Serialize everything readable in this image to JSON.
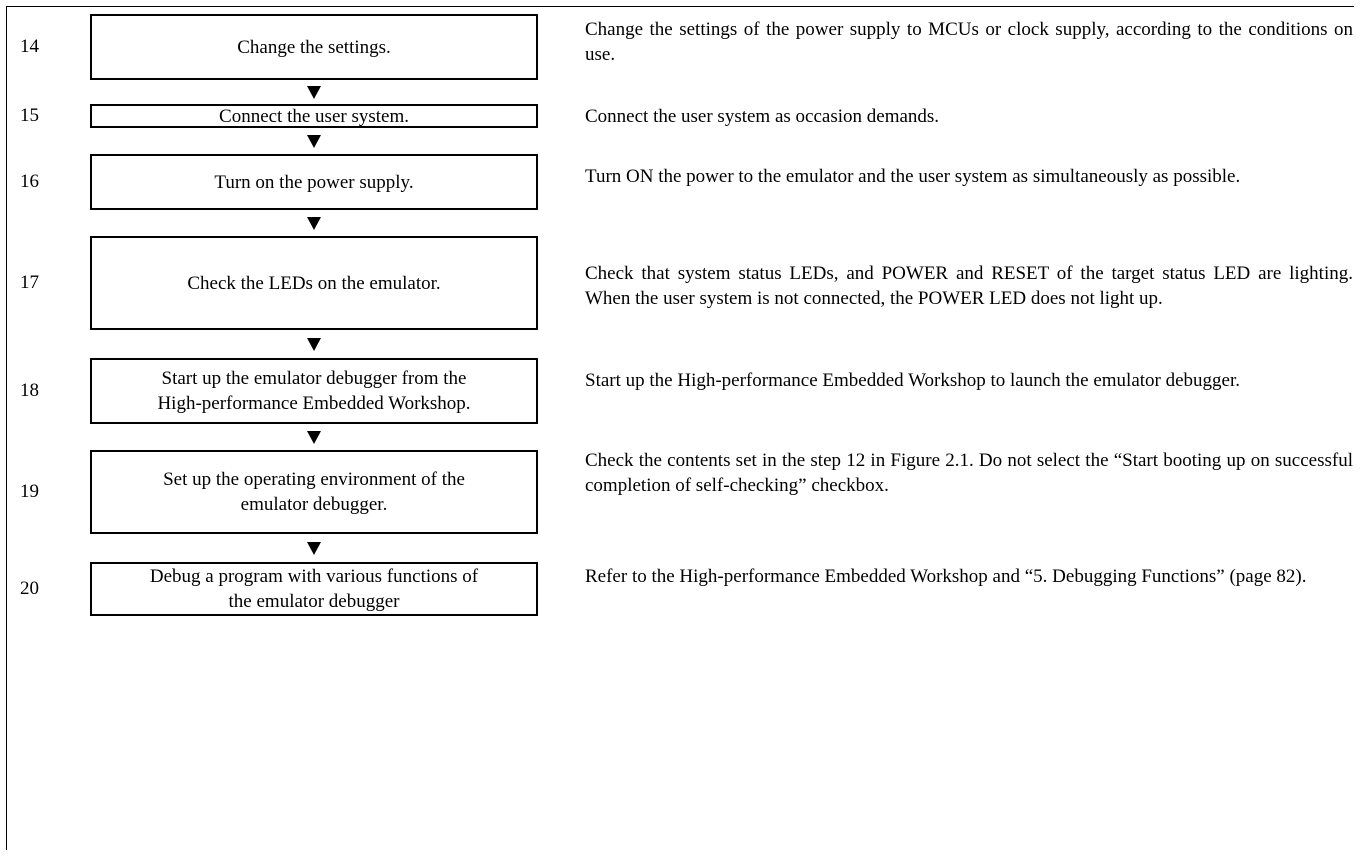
{
  "steps": [
    {
      "number": "14",
      "box": [
        "Change the settings."
      ],
      "description": "Change the settings of the power supply to MCUs or clock supply, according to the conditions on use."
    },
    {
      "number": "15",
      "box": [
        "Connect the user system."
      ],
      "description": "Connect the user system as occasion demands."
    },
    {
      "number": "16",
      "box": [
        "Turn on the power supply."
      ],
      "description": "Turn ON the power to the emulator and the user system as simultaneously as possible."
    },
    {
      "number": "17",
      "box": [
        "Check the LEDs on the emulator."
      ],
      "description": "Check that system status LEDs, and POWER and RESET of the target status LED are lighting. When the user system is not connected, the POWER LED does not light up."
    },
    {
      "number": "18",
      "box": [
        "Start up the emulator debugger from the",
        "High-performance Embedded Workshop."
      ],
      "description": "Start up the High-performance Embedded Workshop to launch the emulator debugger."
    },
    {
      "number": "19",
      "box": [
        "Set up the operating environment of the",
        "emulator debugger."
      ],
      "description": "Check the contents set in the step 12 in Figure 2.1. Do not select the “Start booting up on successful completion of self-checking” checkbox."
    },
    {
      "number": "20",
      "box": [
        "Debug a program with various functions of",
        "the emulator debugger"
      ],
      "description": "Refer to the High-performance Embedded Workshop and “5. Debugging Functions” (page 82)."
    }
  ]
}
